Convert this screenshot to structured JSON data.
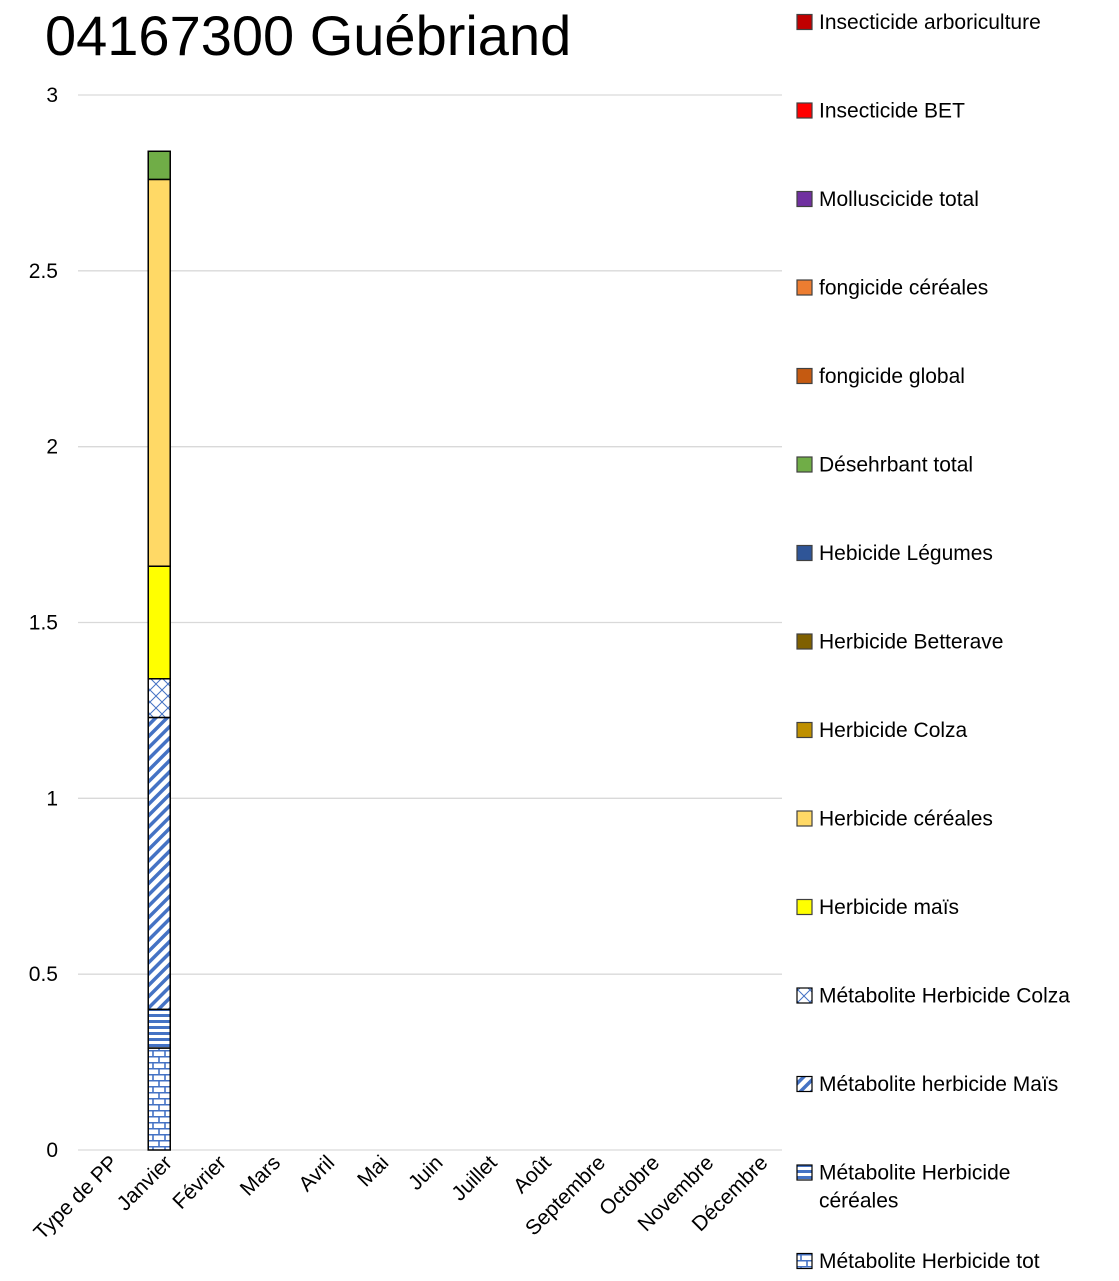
{
  "chart_data": {
    "type": "bar",
    "stacked": true,
    "title": "04167300 Guébriand",
    "xlabel": "",
    "ylabel": "",
    "ylim": [
      0,
      3
    ],
    "yticks": [
      "0",
      "0.5",
      "1",
      "1.5",
      "2",
      "2.5",
      "3"
    ],
    "grid": true,
    "legend_position": "right",
    "categories": [
      "Type de PP",
      "Janvier",
      "Février",
      "Mars",
      "Avril",
      "Mai",
      "Juin",
      "Juillet",
      "Août",
      "Septembre",
      "Octobre",
      "Novembre",
      "Décembre"
    ],
    "series": [
      {
        "name": "Métabolite Herbicide tot",
        "color": "#4472c4",
        "pattern": "brick",
        "values": [
          null,
          0.29,
          null,
          null,
          null,
          null,
          null,
          null,
          null,
          null,
          null,
          null,
          null
        ]
      },
      {
        "name": "Métabolite Herbicide céréales",
        "color": "#4472c4",
        "pattern": "horizontal",
        "values": [
          null,
          0.11,
          null,
          null,
          null,
          null,
          null,
          null,
          null,
          null,
          null,
          null,
          null
        ]
      },
      {
        "name": "Métabolite herbicide Maïs",
        "color": "#4472c4",
        "pattern": "diagonal",
        "values": [
          null,
          0.83,
          null,
          null,
          null,
          null,
          null,
          null,
          null,
          null,
          null,
          null,
          null
        ]
      },
      {
        "name": "Métabolite Herbicide Colza",
        "color": "#4472c4",
        "pattern": "cross",
        "values": [
          null,
          0.11,
          null,
          null,
          null,
          null,
          null,
          null,
          null,
          null,
          null,
          null,
          null
        ]
      },
      {
        "name": "Herbicide maïs",
        "color": "#ffff00",
        "pattern": "solid",
        "values": [
          null,
          0.32,
          null,
          null,
          null,
          null,
          null,
          null,
          null,
          null,
          null,
          null,
          null
        ]
      },
      {
        "name": "Herbicide céréales",
        "color": "#ffd966",
        "pattern": "solid",
        "values": [
          null,
          1.1,
          null,
          null,
          null,
          null,
          null,
          null,
          null,
          null,
          null,
          null,
          null
        ]
      },
      {
        "name": "Herbicide Colza",
        "color": "#bf9000",
        "pattern": "solid",
        "values": [
          null,
          null,
          null,
          null,
          null,
          null,
          null,
          null,
          null,
          null,
          null,
          null,
          null
        ]
      },
      {
        "name": "Herbicide Betterave",
        "color": "#7f6000",
        "pattern": "solid",
        "values": [
          null,
          null,
          null,
          null,
          null,
          null,
          null,
          null,
          null,
          null,
          null,
          null,
          null
        ]
      },
      {
        "name": "Hebicide Légumes",
        "color": "#2f5597",
        "pattern": "solid",
        "values": [
          null,
          null,
          null,
          null,
          null,
          null,
          null,
          null,
          null,
          null,
          null,
          null,
          null
        ]
      },
      {
        "name": "Désehrbant total",
        "color": "#70ad47",
        "pattern": "solid",
        "values": [
          null,
          0.08,
          null,
          null,
          null,
          null,
          null,
          null,
          null,
          null,
          null,
          null,
          null
        ]
      },
      {
        "name": "fongicide global",
        "color": "#c55a11",
        "pattern": "solid",
        "values": [
          null,
          null,
          null,
          null,
          null,
          null,
          null,
          null,
          null,
          null,
          null,
          null,
          null
        ]
      },
      {
        "name": "fongicide céréales",
        "color": "#ed7d31",
        "pattern": "solid",
        "values": [
          null,
          null,
          null,
          null,
          null,
          null,
          null,
          null,
          null,
          null,
          null,
          null,
          null
        ]
      },
      {
        "name": "Molluscicide total",
        "color": "#7030a0",
        "pattern": "solid",
        "values": [
          null,
          null,
          null,
          null,
          null,
          null,
          null,
          null,
          null,
          null,
          null,
          null,
          null
        ]
      },
      {
        "name": "Insecticide BET",
        "color": "#ff0000",
        "pattern": "solid",
        "values": [
          null,
          null,
          null,
          null,
          null,
          null,
          null,
          null,
          null,
          null,
          null,
          null,
          null
        ]
      },
      {
        "name": "Insecticide arboriculture",
        "color": "#c00000",
        "pattern": "solid",
        "values": [
          null,
          null,
          null,
          null,
          null,
          null,
          null,
          null,
          null,
          null,
          null,
          null,
          null
        ]
      }
    ],
    "legend_order": [
      "Insecticide arboriculture",
      "Insecticide BET",
      "Molluscicide total",
      "fongicide céréales",
      "fongicide global",
      "Désehrbant total",
      "Hebicide Légumes",
      "Herbicide Betterave",
      "Herbicide Colza",
      "Herbicide céréales",
      "Herbicide maïs",
      "Métabolite Herbicide Colza",
      "Métabolite herbicide Maïs",
      "Métabolite Herbicide céréales",
      "Métabolite Herbicide tot"
    ]
  }
}
